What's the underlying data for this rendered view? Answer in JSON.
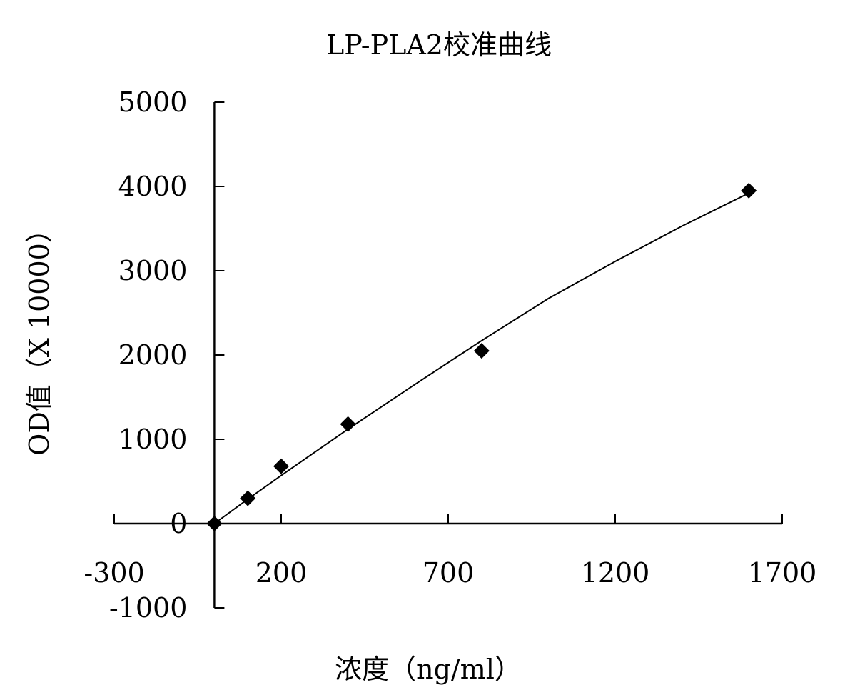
{
  "chart_data": {
    "type": "scatter",
    "title": "LP-PLA2校准曲线",
    "xlabel": "浓度（ng/ml）",
    "ylabel": "OD值（X 10000）",
    "xlim": [
      -300,
      1700
    ],
    "ylim": [
      -1000,
      5000
    ],
    "x_ticks": [
      -300,
      200,
      700,
      1200,
      1700
    ],
    "y_ticks": [
      -1000,
      0,
      1000,
      2000,
      3000,
      4000,
      5000
    ],
    "x_tick_labels": [
      "-300",
      "200",
      "700",
      "1200",
      "1700"
    ],
    "y_tick_labels": [
      "-1000",
      "0",
      "1000",
      "2000",
      "3000",
      "4000",
      "5000"
    ],
    "grid": false,
    "legend": "none",
    "series": [
      {
        "x": [
          0,
          100,
          200,
          400,
          800,
          1600
        ],
        "y": [
          0,
          300,
          680,
          1180,
          2050,
          3950
        ],
        "marker": "diamond",
        "color": "#000000"
      }
    ],
    "fit_line": {
      "type": "polynomial",
      "x": [
        0,
        100,
        200,
        400,
        600,
        800,
        1000,
        1200,
        1400,
        1600
      ],
      "y": [
        0,
        290,
        570,
        1120,
        1650,
        2170,
        2670,
        3110,
        3530,
        3920
      ]
    }
  }
}
